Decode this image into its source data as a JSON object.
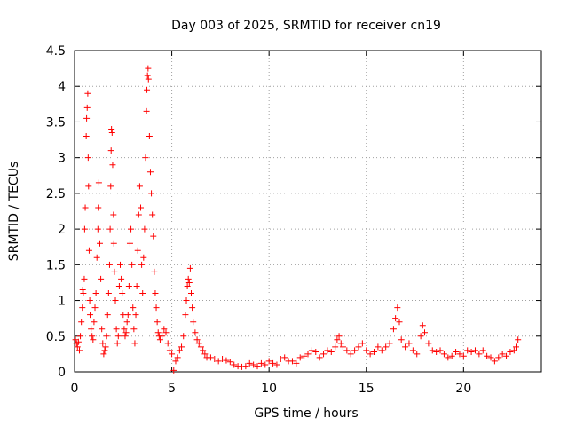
{
  "chart_data": {
    "type": "scatter",
    "title": "Day 003 of 2025, SRMTID for receiver cn19",
    "xlabel": "GPS time / hours",
    "ylabel": "SRMTID / TECUs",
    "xlim": [
      0,
      24
    ],
    "ylim": [
      0,
      4.5
    ],
    "x_ticks": [
      0,
      5,
      10,
      15,
      20
    ],
    "x_tick_labels": [
      "0",
      "5",
      "10",
      "15",
      "20"
    ],
    "y_ticks": [
      0,
      0.5,
      1,
      1.5,
      2,
      2.5,
      3,
      3.5,
      4,
      4.5
    ],
    "y_tick_labels": [
      "0",
      "0.5",
      "1",
      "1.5",
      "2",
      "2.5",
      "3",
      "3.5",
      "4",
      "4.5"
    ],
    "grid": true,
    "marker": "+",
    "marker_color": "#ff0000",
    "series": [
      {
        "name": "SRMTID",
        "points": [
          [
            0.05,
            0.45
          ],
          [
            0.1,
            0.4
          ],
          [
            0.15,
            0.35
          ],
          [
            0.2,
            0.42
          ],
          [
            0.25,
            0.3
          ],
          [
            0.3,
            0.5
          ],
          [
            0.35,
            0.7
          ],
          [
            0.4,
            0.9
          ],
          [
            0.42,
            1.15
          ],
          [
            0.45,
            1.1
          ],
          [
            0.5,
            1.3
          ],
          [
            0.52,
            2.0
          ],
          [
            0.55,
            2.3
          ],
          [
            0.6,
            3.3
          ],
          [
            0.62,
            3.55
          ],
          [
            0.65,
            3.7
          ],
          [
            0.68,
            3.9
          ],
          [
            0.7,
            3.0
          ],
          [
            0.72,
            2.6
          ],
          [
            0.75,
            1.7
          ],
          [
            0.78,
            1.0
          ],
          [
            0.8,
            0.8
          ],
          [
            0.85,
            0.6
          ],
          [
            0.9,
            0.5
          ],
          [
            0.95,
            0.45
          ],
          [
            1.0,
            0.7
          ],
          [
            1.05,
            0.9
          ],
          [
            1.1,
            1.1
          ],
          [
            1.15,
            1.6
          ],
          [
            1.2,
            2.0
          ],
          [
            1.22,
            2.3
          ],
          [
            1.25,
            2.65
          ],
          [
            1.3,
            1.8
          ],
          [
            1.35,
            1.3
          ],
          [
            1.4,
            0.6
          ],
          [
            1.45,
            0.4
          ],
          [
            1.5,
            0.25
          ],
          [
            1.55,
            0.3
          ],
          [
            1.6,
            0.35
          ],
          [
            1.65,
            0.5
          ],
          [
            1.7,
            0.8
          ],
          [
            1.75,
            1.1
          ],
          [
            1.8,
            1.5
          ],
          [
            1.83,
            2.0
          ],
          [
            1.86,
            2.6
          ],
          [
            1.88,
            3.1
          ],
          [
            1.9,
            3.4
          ],
          [
            1.93,
            3.35
          ],
          [
            1.96,
            2.9
          ],
          [
            2.0,
            2.2
          ],
          [
            2.02,
            1.8
          ],
          [
            2.05,
            1.4
          ],
          [
            2.1,
            1.0
          ],
          [
            2.15,
            0.6
          ],
          [
            2.2,
            0.4
          ],
          [
            2.25,
            0.5
          ],
          [
            2.3,
            1.2
          ],
          [
            2.35,
            1.5
          ],
          [
            2.4,
            1.3
          ],
          [
            2.45,
            1.1
          ],
          [
            2.5,
            0.8
          ],
          [
            2.55,
            0.6
          ],
          [
            2.6,
            0.5
          ],
          [
            2.65,
            0.55
          ],
          [
            2.7,
            0.7
          ],
          [
            2.75,
            0.8
          ],
          [
            2.8,
            1.2
          ],
          [
            2.85,
            1.8
          ],
          [
            2.9,
            2.0
          ],
          [
            2.95,
            1.5
          ],
          [
            3.0,
            0.9
          ],
          [
            3.05,
            0.6
          ],
          [
            3.1,
            0.4
          ],
          [
            3.15,
            0.8
          ],
          [
            3.2,
            1.2
          ],
          [
            3.25,
            1.7
          ],
          [
            3.3,
            2.2
          ],
          [
            3.35,
            2.6
          ],
          [
            3.4,
            2.3
          ],
          [
            3.45,
            1.5
          ],
          [
            3.5,
            1.1
          ],
          [
            3.55,
            1.6
          ],
          [
            3.6,
            2.0
          ],
          [
            3.65,
            3.0
          ],
          [
            3.7,
            3.65
          ],
          [
            3.72,
            3.95
          ],
          [
            3.75,
            4.15
          ],
          [
            3.78,
            4.25
          ],
          [
            3.8,
            4.1
          ],
          [
            3.85,
            3.3
          ],
          [
            3.9,
            2.8
          ],
          [
            3.95,
            2.5
          ],
          [
            4.0,
            2.2
          ],
          [
            4.05,
            1.9
          ],
          [
            4.1,
            1.4
          ],
          [
            4.15,
            1.1
          ],
          [
            4.2,
            0.9
          ],
          [
            4.25,
            0.7
          ],
          [
            4.3,
            0.55
          ],
          [
            4.35,
            0.5
          ],
          [
            4.4,
            0.45
          ],
          [
            4.5,
            0.5
          ],
          [
            4.6,
            0.6
          ],
          [
            4.7,
            0.55
          ],
          [
            4.8,
            0.4
          ],
          [
            4.9,
            0.3
          ],
          [
            5.0,
            0.25
          ],
          [
            5.1,
            0.02
          ],
          [
            5.2,
            0.15
          ],
          [
            5.3,
            0.2
          ],
          [
            5.4,
            0.3
          ],
          [
            5.5,
            0.35
          ],
          [
            5.6,
            0.5
          ],
          [
            5.7,
            0.8
          ],
          [
            5.75,
            1.0
          ],
          [
            5.8,
            1.2
          ],
          [
            5.85,
            1.3
          ],
          [
            5.9,
            1.25
          ],
          [
            5.95,
            1.45
          ],
          [
            6.0,
            1.1
          ],
          [
            6.05,
            0.9
          ],
          [
            6.1,
            0.7
          ],
          [
            6.2,
            0.55
          ],
          [
            6.3,
            0.45
          ],
          [
            6.4,
            0.4
          ],
          [
            6.5,
            0.35
          ],
          [
            6.6,
            0.3
          ],
          [
            6.7,
            0.25
          ],
          [
            6.8,
            0.2
          ],
          [
            7.0,
            0.2
          ],
          [
            7.2,
            0.18
          ],
          [
            7.4,
            0.15
          ],
          [
            7.6,
            0.18
          ],
          [
            7.8,
            0.16
          ],
          [
            8.0,
            0.14
          ],
          [
            8.2,
            0.1
          ],
          [
            8.4,
            0.08
          ],
          [
            8.6,
            0.07
          ],
          [
            8.8,
            0.08
          ],
          [
            9.0,
            0.12
          ],
          [
            9.2,
            0.1
          ],
          [
            9.4,
            0.08
          ],
          [
            9.6,
            0.12
          ],
          [
            9.8,
            0.1
          ],
          [
            10.0,
            0.15
          ],
          [
            10.2,
            0.12
          ],
          [
            10.4,
            0.1
          ],
          [
            10.6,
            0.18
          ],
          [
            10.8,
            0.2
          ],
          [
            11.0,
            0.15
          ],
          [
            11.2,
            0.15
          ],
          [
            11.4,
            0.12
          ],
          [
            11.6,
            0.2
          ],
          [
            11.8,
            0.22
          ],
          [
            12.0,
            0.25
          ],
          [
            12.2,
            0.3
          ],
          [
            12.4,
            0.28
          ],
          [
            12.6,
            0.2
          ],
          [
            12.8,
            0.25
          ],
          [
            13.0,
            0.3
          ],
          [
            13.2,
            0.28
          ],
          [
            13.4,
            0.35
          ],
          [
            13.5,
            0.45
          ],
          [
            13.6,
            0.5
          ],
          [
            13.7,
            0.4
          ],
          [
            13.8,
            0.35
          ],
          [
            14.0,
            0.3
          ],
          [
            14.2,
            0.25
          ],
          [
            14.4,
            0.3
          ],
          [
            14.6,
            0.35
          ],
          [
            14.8,
            0.4
          ],
          [
            15.0,
            0.3
          ],
          [
            15.2,
            0.25
          ],
          [
            15.4,
            0.28
          ],
          [
            15.6,
            0.35
          ],
          [
            15.8,
            0.3
          ],
          [
            16.0,
            0.35
          ],
          [
            16.2,
            0.4
          ],
          [
            16.4,
            0.6
          ],
          [
            16.5,
            0.75
          ],
          [
            16.6,
            0.9
          ],
          [
            16.7,
            0.7
          ],
          [
            16.8,
            0.45
          ],
          [
            17.0,
            0.35
          ],
          [
            17.2,
            0.4
          ],
          [
            17.4,
            0.3
          ],
          [
            17.6,
            0.25
          ],
          [
            17.8,
            0.5
          ],
          [
            17.9,
            0.65
          ],
          [
            18.0,
            0.55
          ],
          [
            18.2,
            0.4
          ],
          [
            18.4,
            0.3
          ],
          [
            18.6,
            0.28
          ],
          [
            18.8,
            0.3
          ],
          [
            19.0,
            0.25
          ],
          [
            19.2,
            0.2
          ],
          [
            19.4,
            0.22
          ],
          [
            19.6,
            0.28
          ],
          [
            19.8,
            0.25
          ],
          [
            20.0,
            0.22
          ],
          [
            20.2,
            0.3
          ],
          [
            20.4,
            0.28
          ],
          [
            20.6,
            0.3
          ],
          [
            20.8,
            0.25
          ],
          [
            21.0,
            0.3
          ],
          [
            21.2,
            0.22
          ],
          [
            21.4,
            0.2
          ],
          [
            21.6,
            0.15
          ],
          [
            21.8,
            0.2
          ],
          [
            22.0,
            0.25
          ],
          [
            22.2,
            0.22
          ],
          [
            22.4,
            0.28
          ],
          [
            22.6,
            0.3
          ],
          [
            22.7,
            0.35
          ],
          [
            22.8,
            0.45
          ]
        ]
      }
    ]
  }
}
